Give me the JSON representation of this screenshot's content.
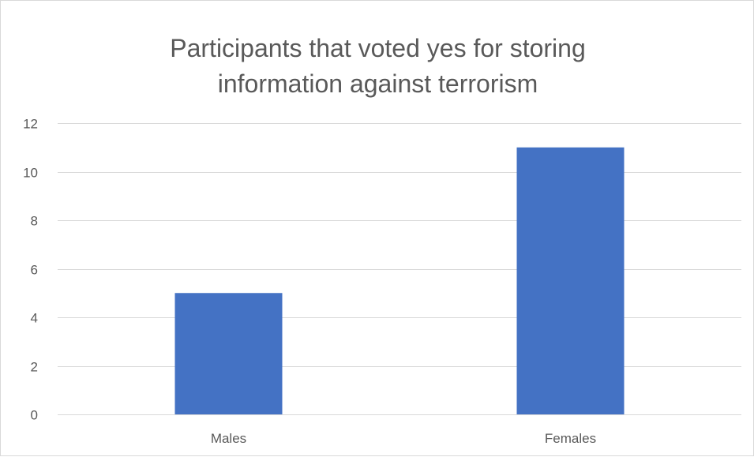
{
  "chart_data": {
    "type": "bar",
    "title_lines": [
      "Participants that voted yes for storing",
      "information against terrorism"
    ],
    "categories": [
      "Males",
      "Females"
    ],
    "values": [
      5,
      11
    ],
    "ylim": [
      0,
      12
    ],
    "yticks": [
      "0",
      "2",
      "4",
      "6",
      "8",
      "10",
      "12"
    ],
    "grid": true,
    "bar_color": "#4472C4",
    "grid_color": "#d9d9d9",
    "xlabel": "",
    "ylabel": ""
  }
}
